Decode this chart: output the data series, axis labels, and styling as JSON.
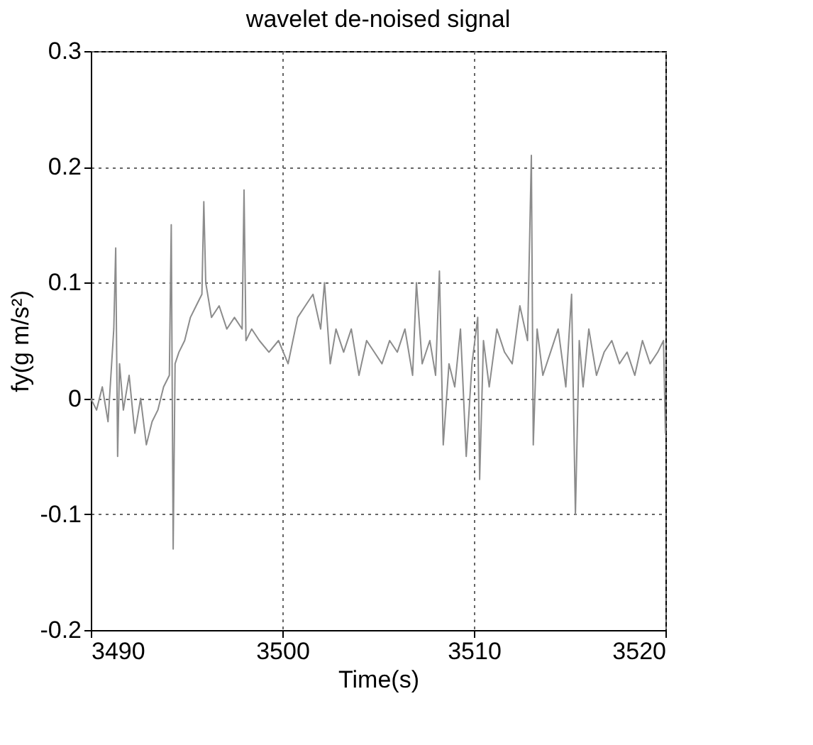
{
  "chart_data": {
    "type": "line",
    "title": "wavelet de-noised signal",
    "xlabel": "Time(s)",
    "ylabel": "fy(g m/s²)",
    "x": [
      3490,
      3490.3,
      3490.6,
      3490.9,
      3491.2,
      3491.3,
      3491.4,
      3491.5,
      3491.7,
      3492,
      3492.3,
      3492.6,
      3492.9,
      3493.2,
      3493.5,
      3493.8,
      3494.1,
      3494.2,
      3494.3,
      3494.4,
      3494.6,
      3494.9,
      3495.2,
      3495.5,
      3495.8,
      3495.9,
      3496,
      3496.3,
      3496.7,
      3497.1,
      3497.5,
      3497.9,
      3498,
      3498.1,
      3498.4,
      3498.8,
      3499.3,
      3499.8,
      3500.3,
      3500.8,
      3501.2,
      3501.6,
      3502,
      3502.2,
      3502.5,
      3502.8,
      3503.2,
      3503.6,
      3504,
      3504.4,
      3504.8,
      3505.2,
      3505.6,
      3506,
      3506.4,
      3506.8,
      3507,
      3507.3,
      3507.7,
      3508,
      3508.2,
      3508.4,
      3508.7,
      3509,
      3509.3,
      3509.6,
      3509.9,
      3510.2,
      3510.3,
      3510.5,
      3510.8,
      3511.2,
      3511.6,
      3512,
      3512.4,
      3512.8,
      3513,
      3513.1,
      3513.3,
      3513.6,
      3514,
      3514.4,
      3514.8,
      3515.1,
      3515.3,
      3515.5,
      3515.7,
      3516,
      3516.4,
      3516.8,
      3517.2,
      3517.6,
      3518,
      3518.4,
      3518.8,
      3519.2,
      3519.6,
      3519.9,
      3520
    ],
    "series": [
      {
        "color": "#8c8c8c",
        "values": [
          0,
          -0.01,
          0.01,
          -0.02,
          0.06,
          0.13,
          -0.05,
          0.03,
          -0.01,
          0.02,
          -0.03,
          0,
          -0.04,
          -0.02,
          -0.01,
          0.01,
          0.02,
          0.15,
          -0.13,
          0.03,
          0.04,
          0.05,
          0.07,
          0.08,
          0.09,
          0.17,
          0.1,
          0.07,
          0.08,
          0.06,
          0.07,
          0.06,
          0.18,
          0.05,
          0.06,
          0.05,
          0.04,
          0.05,
          0.03,
          0.07,
          0.08,
          0.09,
          0.06,
          0.1,
          0.03,
          0.06,
          0.04,
          0.06,
          0.02,
          0.05,
          0.04,
          0.03,
          0.05,
          0.04,
          0.06,
          0.02,
          0.1,
          0.03,
          0.05,
          0.02,
          0.11,
          -0.04,
          0.03,
          0.01,
          0.06,
          -0.05,
          0.03,
          0.07,
          -0.07,
          0.05,
          0.01,
          0.06,
          0.04,
          0.03,
          0.08,
          0.05,
          0.21,
          -0.04,
          0.06,
          0.02,
          0.04,
          0.06,
          0.01,
          0.09,
          -0.1,
          0.05,
          0.01,
          0.06,
          0.02,
          0.04,
          0.05,
          0.03,
          0.04,
          0.02,
          0.05,
          0.03,
          0.04,
          0.05,
          -0.03
        ]
      }
    ],
    "xlim": [
      3490,
      3520
    ],
    "xticks": [
      3490,
      3500,
      3510,
      3520
    ],
    "ylim": [
      -0.2,
      0.3
    ],
    "yticks": [
      -0.2,
      -0.1,
      0,
      0.1,
      0.2,
      0.3
    ],
    "grid": true,
    "line_style": "solid",
    "marker": "none"
  }
}
